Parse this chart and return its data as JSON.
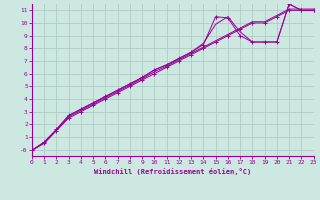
{
  "xlabel": "Windchill (Refroidissement éolien,°C)",
  "bg_color": "#cde8e0",
  "line_color": "#990099",
  "grid_color": "#aac8c0",
  "xlim": [
    0,
    23
  ],
  "ylim": [
    -0.5,
    11.5
  ],
  "xticks": [
    0,
    1,
    2,
    3,
    4,
    5,
    6,
    7,
    8,
    9,
    10,
    11,
    12,
    13,
    14,
    15,
    16,
    17,
    18,
    19,
    20,
    21,
    22,
    23
  ],
  "yticks": [
    0,
    1,
    2,
    3,
    4,
    5,
    6,
    7,
    8,
    9,
    10,
    11
  ],
  "ytick_labels": [
    "-0",
    "1",
    "2",
    "3",
    "4",
    "5",
    "6",
    "7",
    "8",
    "9",
    "10",
    "11"
  ],
  "line1_x": [
    0,
    1,
    2,
    3,
    4,
    5,
    6,
    7,
    8,
    9,
    10,
    11,
    12,
    13,
    14,
    15,
    16,
    17,
    18,
    19,
    20,
    21,
    22,
    23
  ],
  "line1_y": [
    -0.05,
    0.5,
    1.5,
    2.5,
    3.0,
    3.5,
    4.0,
    4.5,
    5.0,
    5.5,
    6.0,
    6.5,
    7.0,
    7.5,
    8.0,
    8.5,
    9.0,
    9.5,
    10.0,
    10.0,
    10.5,
    11.0,
    11.0,
    11.0
  ],
  "line2_x": [
    0,
    1,
    2,
    3,
    4,
    5,
    6,
    7,
    8,
    9,
    10,
    11,
    12,
    13,
    14,
    15,
    16,
    17,
    18,
    19,
    20,
    21,
    22,
    23
  ],
  "line2_y": [
    -0.05,
    0.55,
    1.55,
    2.6,
    3.1,
    3.6,
    4.1,
    4.6,
    5.1,
    5.6,
    6.15,
    6.6,
    7.1,
    7.6,
    8.1,
    8.6,
    9.1,
    9.6,
    10.1,
    10.1,
    10.6,
    11.1,
    11.1,
    11.1
  ],
  "line3_x": [
    0,
    1,
    2,
    3,
    4,
    5,
    6,
    7,
    8,
    9,
    10,
    11,
    12,
    13,
    14,
    15,
    16,
    17,
    18,
    19,
    20,
    21,
    22,
    23
  ],
  "line3_y": [
    -0.05,
    0.6,
    1.6,
    2.7,
    3.2,
    3.7,
    4.2,
    4.7,
    5.2,
    5.7,
    6.3,
    6.7,
    7.2,
    7.7,
    8.3,
    10.5,
    10.4,
    9.0,
    8.5,
    8.5,
    8.5,
    11.5,
    11.0,
    11.0
  ],
  "line4_x": [
    0,
    1,
    2,
    3,
    4,
    5,
    6,
    7,
    8,
    9,
    10,
    11,
    12,
    13,
    14,
    15,
    16,
    17,
    18,
    19,
    20,
    21,
    22,
    23
  ],
  "line4_y": [
    -0.05,
    0.6,
    1.6,
    2.7,
    3.2,
    3.7,
    4.2,
    4.7,
    5.2,
    5.7,
    6.3,
    6.7,
    7.2,
    7.7,
    8.4,
    9.9,
    10.5,
    9.3,
    8.5,
    8.5,
    8.5,
    11.5,
    11.0,
    11.0
  ]
}
